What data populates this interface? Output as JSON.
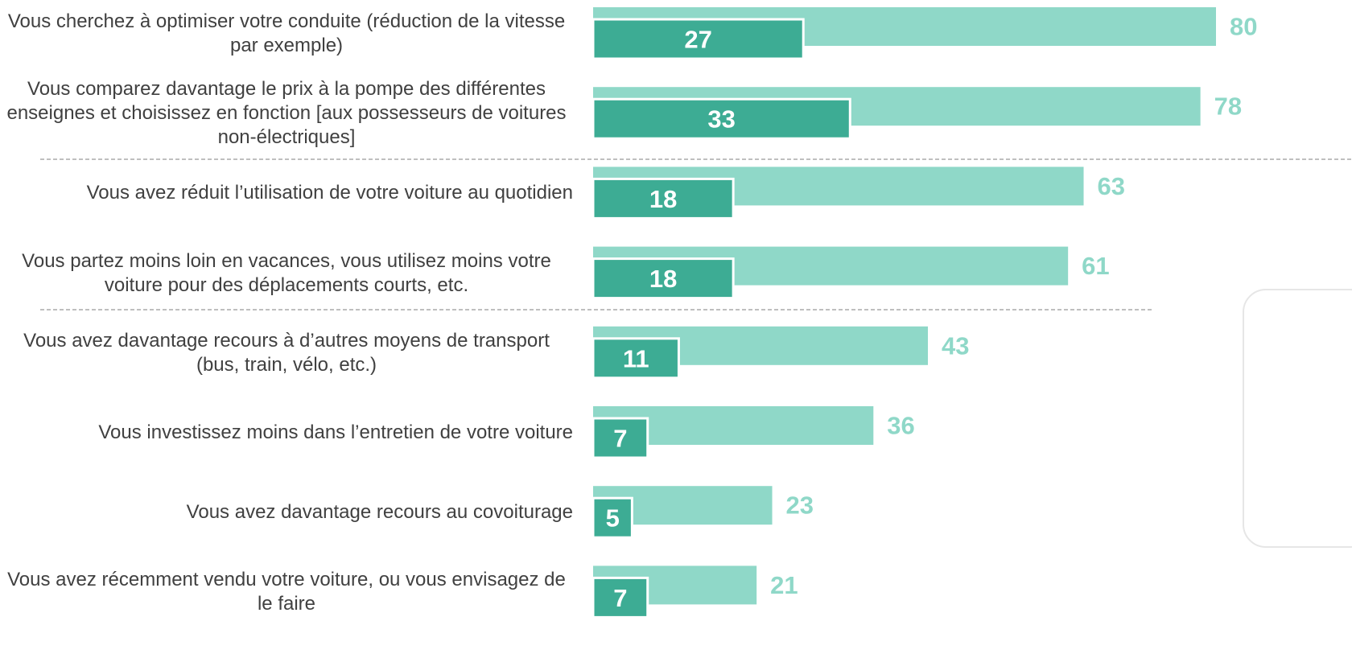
{
  "chart_data": {
    "type": "bar",
    "orientation": "horizontal",
    "categories": [
      "Vous cherchez à optimiser votre conduite (réduction de la vitesse par exemple)",
      "Vous comparez davantage le prix à la pompe des différentes enseignes et choisissez en fonction [aux possesseurs de voitures non-électriques]",
      "Vous avez réduit l’utilisation de votre voiture au quotidien",
      "Vous partez moins loin en vacances, vous utilisez moins votre voiture pour des déplacements courts, etc.",
      "Vous avez davantage recours à d’autres moyens de transport (bus, train, vélo, etc.)",
      "Vous investissez moins dans l’entretien de votre voiture",
      "Vous avez davantage recours au covoiturage",
      "Vous avez récemment vendu votre voiture, ou vous envisagez de le faire"
    ],
    "series": [
      {
        "color": "#8fd8c8",
        "values": [
          80,
          78,
          63,
          61,
          43,
          36,
          23,
          21
        ]
      },
      {
        "color": "#3dac94",
        "values": [
          27,
          33,
          18,
          18,
          11,
          7,
          5,
          7
        ]
      }
    ]
  }
}
